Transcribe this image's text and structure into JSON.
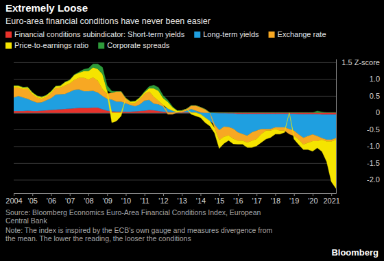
{
  "chart_data": {
    "type": "area",
    "title": "Extremely Loose",
    "subtitle": "Euro-area financial conditions have never been easier",
    "source": [
      "Source: Bloomberg Economics Euro-Area Financial Conditions Index, European",
      "Central Bank"
    ],
    "note": [
      "Note: The index is inspired by the ECB's own gauge and measures divergence from",
      "the mean. The lower the reading, the looser the conditions"
    ],
    "credit": "Bloomberg",
    "stacked": true,
    "grid": true,
    "legend": "top-left",
    "x": [
      2004,
      2004.25,
      2004.5,
      2004.75,
      2005,
      2005.25,
      2005.5,
      2005.75,
      2006,
      2006.25,
      2006.5,
      2006.75,
      2007,
      2007.25,
      2007.5,
      2007.75,
      2008,
      2008.25,
      2008.5,
      2008.75,
      2009,
      2009.25,
      2009.5,
      2009.75,
      2010,
      2010.25,
      2010.5,
      2010.75,
      2011,
      2011.25,
      2011.5,
      2011.75,
      2012,
      2012.25,
      2012.5,
      2012.75,
      2013,
      2013.25,
      2013.5,
      2013.75,
      2014,
      2014.25,
      2014.5,
      2014.75,
      2015,
      2015.25,
      2015.5,
      2015.75,
      2016,
      2016.25,
      2016.5,
      2016.75,
      2017,
      2017.25,
      2017.5,
      2017.75,
      2018,
      2018.25,
      2018.5,
      2018.75,
      2019,
      2019.25,
      2019.5,
      2019.75,
      2020,
      2020.25,
      2020.5,
      2020.75,
      2021,
      2021.25
    ],
    "xlim": [
      2004,
      2021.25
    ],
    "xticks": [
      {
        "value": 2004,
        "label": "2004"
      },
      {
        "value": 2005,
        "label": "'05"
      },
      {
        "value": 2006,
        "label": "'06"
      },
      {
        "value": 2007,
        "label": "'07"
      },
      {
        "value": 2008,
        "label": "'08"
      },
      {
        "value": 2009,
        "label": "'09"
      },
      {
        "value": 2010,
        "label": "'10"
      },
      {
        "value": 2011,
        "label": "'11"
      },
      {
        "value": 2012,
        "label": "'12"
      },
      {
        "value": 2013,
        "label": "'13"
      },
      {
        "value": 2014,
        "label": "'14"
      },
      {
        "value": 2015,
        "label": "'15"
      },
      {
        "value": 2016,
        "label": "'16"
      },
      {
        "value": 2017,
        "label": "'17"
      },
      {
        "value": 2018,
        "label": "'18"
      },
      {
        "value": 2019,
        "label": "'19"
      },
      {
        "value": 2020,
        "label": "'20"
      },
      {
        "value": 2021,
        "label": "2021"
      }
    ],
    "ylim": [
      -2.4,
      1.6
    ],
    "yticks": [
      {
        "value": 1.5,
        "label": "1.5 Z-score"
      },
      {
        "value": 1,
        "label": "1.0"
      },
      0.5,
      0,
      -0.5,
      {
        "value": -1,
        "label": "-1.0"
      },
      -1.5,
      {
        "value": -2,
        "label": "-2.0"
      }
    ],
    "series": [
      {
        "name": "Financial conditions subindicator: Short-term yields",
        "color": "#e8322b",
        "values": [
          0.05,
          0.05,
          0.05,
          0.06,
          0.05,
          0.05,
          0.06,
          0.07,
          0.08,
          0.09,
          0.1,
          0.11,
          0.12,
          0.13,
          0.14,
          0.14,
          0.14,
          0.15,
          0.15,
          0.1,
          0.06,
          0.04,
          0.03,
          0.03,
          0.03,
          0.03,
          0.04,
          0.05,
          0.06,
          0.08,
          0.07,
          0.05,
          0.03,
          0.02,
          0.01,
          0.01,
          0.01,
          0.01,
          0.01,
          0.01,
          0.01,
          0,
          0,
          -0.01,
          -0.02,
          -0.02,
          -0.03,
          -0.03,
          -0.04,
          -0.04,
          -0.04,
          -0.04,
          -0.04,
          -0.04,
          -0.04,
          -0.04,
          -0.04,
          -0.04,
          -0.04,
          -0.04,
          -0.04,
          -0.05,
          -0.05,
          -0.05,
          -0.05,
          -0.05,
          -0.06,
          -0.06,
          -0.06,
          -0.06
        ]
      },
      {
        "name": "Long-term yields",
        "color": "#1f9fe0",
        "values": [
          0.4,
          0.45,
          0.4,
          0.35,
          0.3,
          0.25,
          0.25,
          0.3,
          0.35,
          0.45,
          0.45,
          0.45,
          0.5,
          0.55,
          0.55,
          0.5,
          0.5,
          0.5,
          0.45,
          0.4,
          0.35,
          0.35,
          0.3,
          0.3,
          0.25,
          0.2,
          0.15,
          0.2,
          0.3,
          0.3,
          0.2,
          0.2,
          0.15,
          0.1,
          0.05,
          0,
          0,
          0.05,
          0.1,
          0.05,
          -0.05,
          -0.15,
          -0.25,
          -0.35,
          -0.5,
          -0.4,
          -0.4,
          -0.45,
          -0.55,
          -0.6,
          -0.65,
          -0.55,
          -0.5,
          -0.45,
          -0.45,
          -0.45,
          -0.4,
          -0.4,
          -0.4,
          -0.45,
          -0.5,
          -0.6,
          -0.7,
          -0.65,
          -0.6,
          -0.65,
          -0.7,
          -0.75,
          -0.75,
          -0.7
        ]
      },
      {
        "name": "Exchange rate",
        "color": "#f7a823",
        "values": [
          0.3,
          0.25,
          0.25,
          0.3,
          0.2,
          0.15,
          0.1,
          0.1,
          0.15,
          0.2,
          0.2,
          0.25,
          0.25,
          0.3,
          0.35,
          0.4,
          0.35,
          0.4,
          0.35,
          0.2,
          0.15,
          0.2,
          0.3,
          0.3,
          0.15,
          0.05,
          0.1,
          0.15,
          0.2,
          0.25,
          0.2,
          0.1,
          0.05,
          -0.05,
          -0.05,
          0,
          0.05,
          0.05,
          0.1,
          0.15,
          0.15,
          0.1,
          0,
          -0.1,
          -0.3,
          -0.3,
          -0.25,
          -0.3,
          -0.25,
          -0.2,
          -0.2,
          -0.25,
          -0.25,
          -0.15,
          -0.05,
          -0.05,
          -0.05,
          -0.1,
          -0.1,
          -0.15,
          -0.15,
          -0.15,
          -0.2,
          -0.2,
          -0.2,
          -0.15,
          -0.05,
          -0.05,
          -0.05,
          -0.05
        ]
      },
      {
        "name": "Price-to-earnings ratio",
        "color": "#f5e400",
        "values": [
          0.05,
          0.05,
          0.05,
          0.05,
          0.05,
          0.05,
          0.05,
          0.05,
          0.05,
          0.05,
          0.05,
          0.1,
          0.1,
          0.15,
          0.15,
          0.2,
          0.25,
          0.3,
          0.35,
          0.45,
          0.1,
          -0.3,
          -0.25,
          -0.1,
          0,
          0.05,
          0.05,
          0.05,
          0.05,
          0.1,
          0.25,
          0.3,
          0.2,
          0.2,
          0.1,
          0.05,
          0,
          0,
          -0.05,
          -0.1,
          -0.1,
          -0.15,
          -0.15,
          -0.15,
          -0.25,
          -0.2,
          -0.15,
          -0.15,
          -0.1,
          -0.1,
          -0.15,
          -0.2,
          -0.2,
          -0.25,
          -0.25,
          -0.2,
          -0.15,
          -0.1,
          -0.05,
          0,
          -0.1,
          -0.15,
          -0.15,
          -0.2,
          -0.3,
          -0.2,
          -0.35,
          -0.6,
          -1.2,
          -1.45
        ]
      },
      {
        "name": "Corporate spreads",
        "color": "#2e9a3a",
        "values": [
          0,
          0,
          0,
          0,
          0,
          0,
          0,
          0,
          0,
          0,
          0,
          0,
          0,
          0,
          0.02,
          0.05,
          0.08,
          0.1,
          0.15,
          0.2,
          0.15,
          0.05,
          0,
          0,
          0,
          0,
          0,
          0,
          0.02,
          0.05,
          0.1,
          0.1,
          0.08,
          0.05,
          0.02,
          0,
          0,
          0,
          0,
          0,
          0,
          0,
          0,
          0,
          0,
          0,
          0,
          0,
          0,
          0,
          0,
          0,
          0,
          0,
          0,
          0,
          0,
          0,
          0,
          0,
          0,
          0,
          0,
          0,
          0,
          0.05,
          0.02,
          0,
          0,
          0
        ]
      }
    ]
  }
}
